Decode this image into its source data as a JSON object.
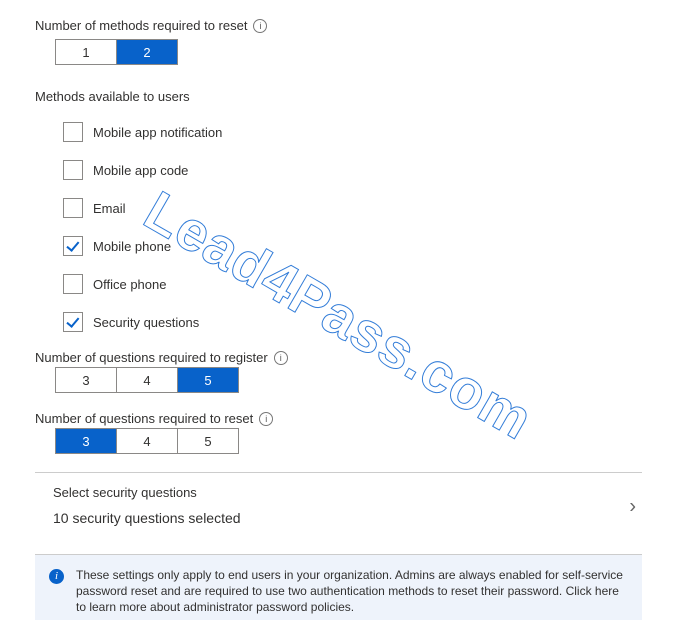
{
  "colors": {
    "accent": "#0862ca",
    "border": "#8a8886",
    "text": "#323130",
    "notice_bg": "#eef3fb",
    "divider": "#cccccc",
    "background": "#ffffff"
  },
  "methods_required": {
    "label": "Number of methods required to reset",
    "options": [
      "1",
      "2"
    ],
    "selected_index": 1
  },
  "methods_available": {
    "label": "Methods available to users",
    "items": [
      {
        "label": "Mobile app notification",
        "checked": false
      },
      {
        "label": "Mobile app code",
        "checked": false
      },
      {
        "label": "Email",
        "checked": false
      },
      {
        "label": "Mobile phone",
        "checked": true
      },
      {
        "label": "Office phone",
        "checked": false
      },
      {
        "label": "Security questions",
        "checked": true
      }
    ]
  },
  "questions_register": {
    "label": "Number of questions required to register",
    "options": [
      "3",
      "4",
      "5"
    ],
    "selected_index": 2
  },
  "questions_reset": {
    "label": "Number of questions required to reset",
    "options": [
      "3",
      "4",
      "5"
    ],
    "selected_index": 0
  },
  "select_questions": {
    "title": "Select security questions",
    "subtitle": "10 security questions selected"
  },
  "notice": {
    "text": "These settings only apply to end users in your organization. Admins are always enabled for self-service password reset and are required to use two authentication methods to reset their password. Click here to learn more about administrator password policies."
  },
  "watermark": "Lead4Pass.com"
}
